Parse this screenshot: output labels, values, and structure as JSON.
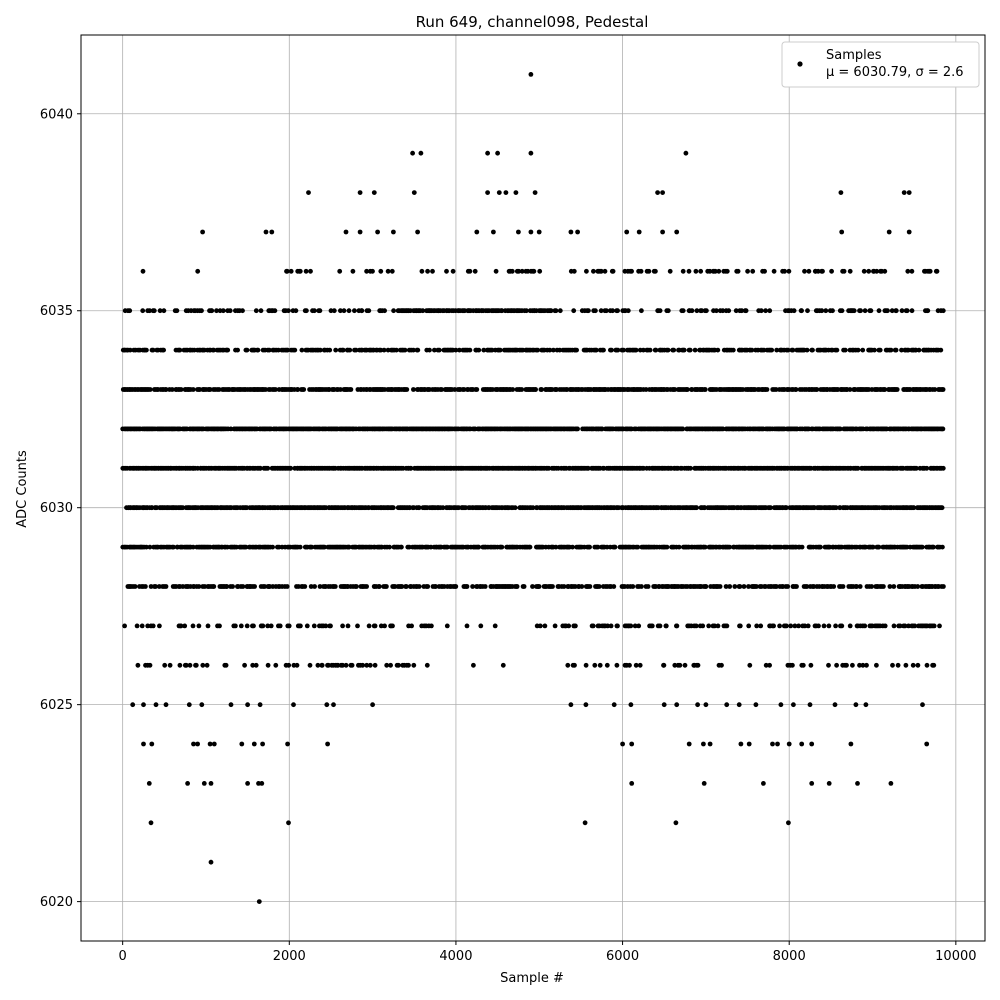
{
  "chart_data": {
    "type": "scatter",
    "title": "Run 649, channel098, Pedestal",
    "xlabel": "Sample #",
    "ylabel": "ADC Counts",
    "xlim": [
      -500,
      10350
    ],
    "ylim": [
      6019,
      6042
    ],
    "xticks": [
      0,
      2000,
      4000,
      6000,
      8000,
      10000
    ],
    "yticks": [
      6020,
      6025,
      6030,
      6035,
      6040
    ],
    "grid": true,
    "legend_position": "top-right",
    "marker_color": "#000000",
    "series": [
      {
        "name": "Samples",
        "label_line2": "μ = 6030.79, σ = 2.6",
        "x_range": [
          0,
          9850
        ],
        "y_levels": [
          6026,
          6027,
          6028,
          6029,
          6030,
          6031,
          6032,
          6033,
          6034,
          6035,
          6036
        ],
        "outliers": [
          {
            "x": 4900,
            "y": 6041
          },
          {
            "x": 3480,
            "y": 6039
          },
          {
            "x": 3580,
            "y": 6039
          },
          {
            "x": 4380,
            "y": 6039
          },
          {
            "x": 4500,
            "y": 6039
          },
          {
            "x": 4900,
            "y": 6039
          },
          {
            "x": 6760,
            "y": 6039
          },
          {
            "x": 2230,
            "y": 6038
          },
          {
            "x": 2850,
            "y": 6038
          },
          {
            "x": 3020,
            "y": 6038
          },
          {
            "x": 3500,
            "y": 6038
          },
          {
            "x": 4380,
            "y": 6038
          },
          {
            "x": 4520,
            "y": 6038
          },
          {
            "x": 4600,
            "y": 6038
          },
          {
            "x": 4720,
            "y": 6038
          },
          {
            "x": 4950,
            "y": 6038
          },
          {
            "x": 6420,
            "y": 6038
          },
          {
            "x": 6480,
            "y": 6038
          },
          {
            "x": 8620,
            "y": 6038
          },
          {
            "x": 9380,
            "y": 6038
          },
          {
            "x": 9440,
            "y": 6038
          },
          {
            "x": 960,
            "y": 6037
          },
          {
            "x": 1720,
            "y": 6037
          },
          {
            "x": 1790,
            "y": 6037
          },
          {
            "x": 2680,
            "y": 6037
          },
          {
            "x": 2850,
            "y": 6037
          },
          {
            "x": 3060,
            "y": 6037
          },
          {
            "x": 3250,
            "y": 6037
          },
          {
            "x": 3540,
            "y": 6037
          },
          {
            "x": 4250,
            "y": 6037
          },
          {
            "x": 4450,
            "y": 6037
          },
          {
            "x": 4750,
            "y": 6037
          },
          {
            "x": 4900,
            "y": 6037
          },
          {
            "x": 5000,
            "y": 6037
          },
          {
            "x": 5380,
            "y": 6037
          },
          {
            "x": 5460,
            "y": 6037
          },
          {
            "x": 6050,
            "y": 6037
          },
          {
            "x": 6200,
            "y": 6037
          },
          {
            "x": 6480,
            "y": 6037
          },
          {
            "x": 6650,
            "y": 6037
          },
          {
            "x": 8630,
            "y": 6037
          },
          {
            "x": 9200,
            "y": 6037
          },
          {
            "x": 9440,
            "y": 6037
          },
          {
            "x": 120,
            "y": 6025
          },
          {
            "x": 250,
            "y": 6025
          },
          {
            "x": 400,
            "y": 6025
          },
          {
            "x": 520,
            "y": 6025
          },
          {
            "x": 800,
            "y": 6025
          },
          {
            "x": 950,
            "y": 6025
          },
          {
            "x": 1300,
            "y": 6025
          },
          {
            "x": 1500,
            "y": 6025
          },
          {
            "x": 1650,
            "y": 6025
          },
          {
            "x": 2050,
            "y": 6025
          },
          {
            "x": 2450,
            "y": 6025
          },
          {
            "x": 2530,
            "y": 6025
          },
          {
            "x": 3000,
            "y": 6025
          },
          {
            "x": 5380,
            "y": 6025
          },
          {
            "x": 5560,
            "y": 6025
          },
          {
            "x": 5900,
            "y": 6025
          },
          {
            "x": 6100,
            "y": 6025
          },
          {
            "x": 6500,
            "y": 6025
          },
          {
            "x": 6650,
            "y": 6025
          },
          {
            "x": 6900,
            "y": 6025
          },
          {
            "x": 7000,
            "y": 6025
          },
          {
            "x": 7250,
            "y": 6025
          },
          {
            "x": 7400,
            "y": 6025
          },
          {
            "x": 7600,
            "y": 6025
          },
          {
            "x": 7900,
            "y": 6025
          },
          {
            "x": 8050,
            "y": 6025
          },
          {
            "x": 8250,
            "y": 6025
          },
          {
            "x": 8550,
            "y": 6025
          },
          {
            "x": 8800,
            "y": 6025
          },
          {
            "x": 8920,
            "y": 6025
          },
          {
            "x": 9600,
            "y": 6025
          },
          {
            "x": 250,
            "y": 6024
          },
          {
            "x": 350,
            "y": 6024
          },
          {
            "x": 850,
            "y": 6024
          },
          {
            "x": 900,
            "y": 6024
          },
          {
            "x": 1050,
            "y": 6024
          },
          {
            "x": 1100,
            "y": 6024
          },
          {
            "x": 1430,
            "y": 6024
          },
          {
            "x": 1580,
            "y": 6024
          },
          {
            "x": 1680,
            "y": 6024
          },
          {
            "x": 1980,
            "y": 6024
          },
          {
            "x": 2460,
            "y": 6024
          },
          {
            "x": 6000,
            "y": 6024
          },
          {
            "x": 6110,
            "y": 6024
          },
          {
            "x": 6800,
            "y": 6024
          },
          {
            "x": 6970,
            "y": 6024
          },
          {
            "x": 7050,
            "y": 6024
          },
          {
            "x": 7420,
            "y": 6024
          },
          {
            "x": 7520,
            "y": 6024
          },
          {
            "x": 7800,
            "y": 6024
          },
          {
            "x": 7860,
            "y": 6024
          },
          {
            "x": 8000,
            "y": 6024
          },
          {
            "x": 8150,
            "y": 6024
          },
          {
            "x": 8270,
            "y": 6024
          },
          {
            "x": 8740,
            "y": 6024
          },
          {
            "x": 9650,
            "y": 6024
          },
          {
            "x": 320,
            "y": 6023
          },
          {
            "x": 780,
            "y": 6023
          },
          {
            "x": 980,
            "y": 6023
          },
          {
            "x": 1060,
            "y": 6023
          },
          {
            "x": 1500,
            "y": 6023
          },
          {
            "x": 1630,
            "y": 6023
          },
          {
            "x": 1670,
            "y": 6023
          },
          {
            "x": 6110,
            "y": 6023
          },
          {
            "x": 6980,
            "y": 6023
          },
          {
            "x": 7690,
            "y": 6023
          },
          {
            "x": 8270,
            "y": 6023
          },
          {
            "x": 8480,
            "y": 6023
          },
          {
            "x": 8820,
            "y": 6023
          },
          {
            "x": 9220,
            "y": 6023
          },
          {
            "x": 340,
            "y": 6022
          },
          {
            "x": 1990,
            "y": 6022
          },
          {
            "x": 5550,
            "y": 6022
          },
          {
            "x": 6640,
            "y": 6022
          },
          {
            "x": 7990,
            "y": 6022
          },
          {
            "x": 1060,
            "y": 6021
          },
          {
            "x": 1640,
            "y": 6020
          }
        ]
      }
    ]
  }
}
